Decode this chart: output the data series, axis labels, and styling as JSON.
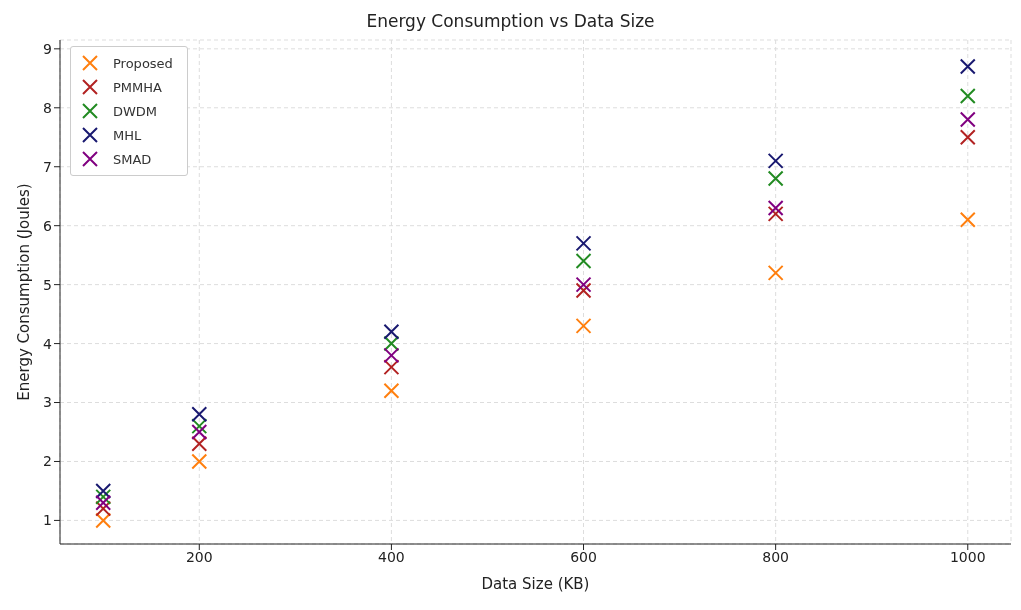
{
  "chart_data": {
    "type": "scatter",
    "title": "Energy Consumption vs Data Size",
    "xlabel": "Data Size (KB)",
    "ylabel": "Energy Consumption (Joules)",
    "x": [
      100,
      200,
      400,
      600,
      800,
      1000
    ],
    "series": [
      {
        "name": "Proposed",
        "color": "#ff7f0e",
        "values": [
          1.0,
          2.0,
          3.2,
          4.3,
          5.2,
          6.1
        ]
      },
      {
        "name": "PMMHA",
        "color": "#b22222",
        "values": [
          1.2,
          2.3,
          3.6,
          4.9,
          6.2,
          7.5
        ]
      },
      {
        "name": "DWDM",
        "color": "#228b22",
        "values": [
          1.4,
          2.6,
          4.0,
          5.4,
          6.8,
          8.2
        ]
      },
      {
        "name": "MHL",
        "color": "#191970",
        "values": [
          1.5,
          2.8,
          4.2,
          5.7,
          7.1,
          8.7
        ]
      },
      {
        "name": "SMAD",
        "color": "#800080",
        "values": [
          1.3,
          2.5,
          3.8,
          5.0,
          6.3,
          7.8
        ]
      }
    ],
    "xlim": [
      55,
      1045
    ],
    "xticks": [
      200,
      400,
      600,
      800,
      1000
    ],
    "ylim": [
      0.6,
      9.15
    ],
    "yticks": [
      1,
      2,
      3,
      4,
      5,
      6,
      7,
      8,
      9
    ],
    "grid": true,
    "legend": "top left",
    "marker": "cross"
  }
}
